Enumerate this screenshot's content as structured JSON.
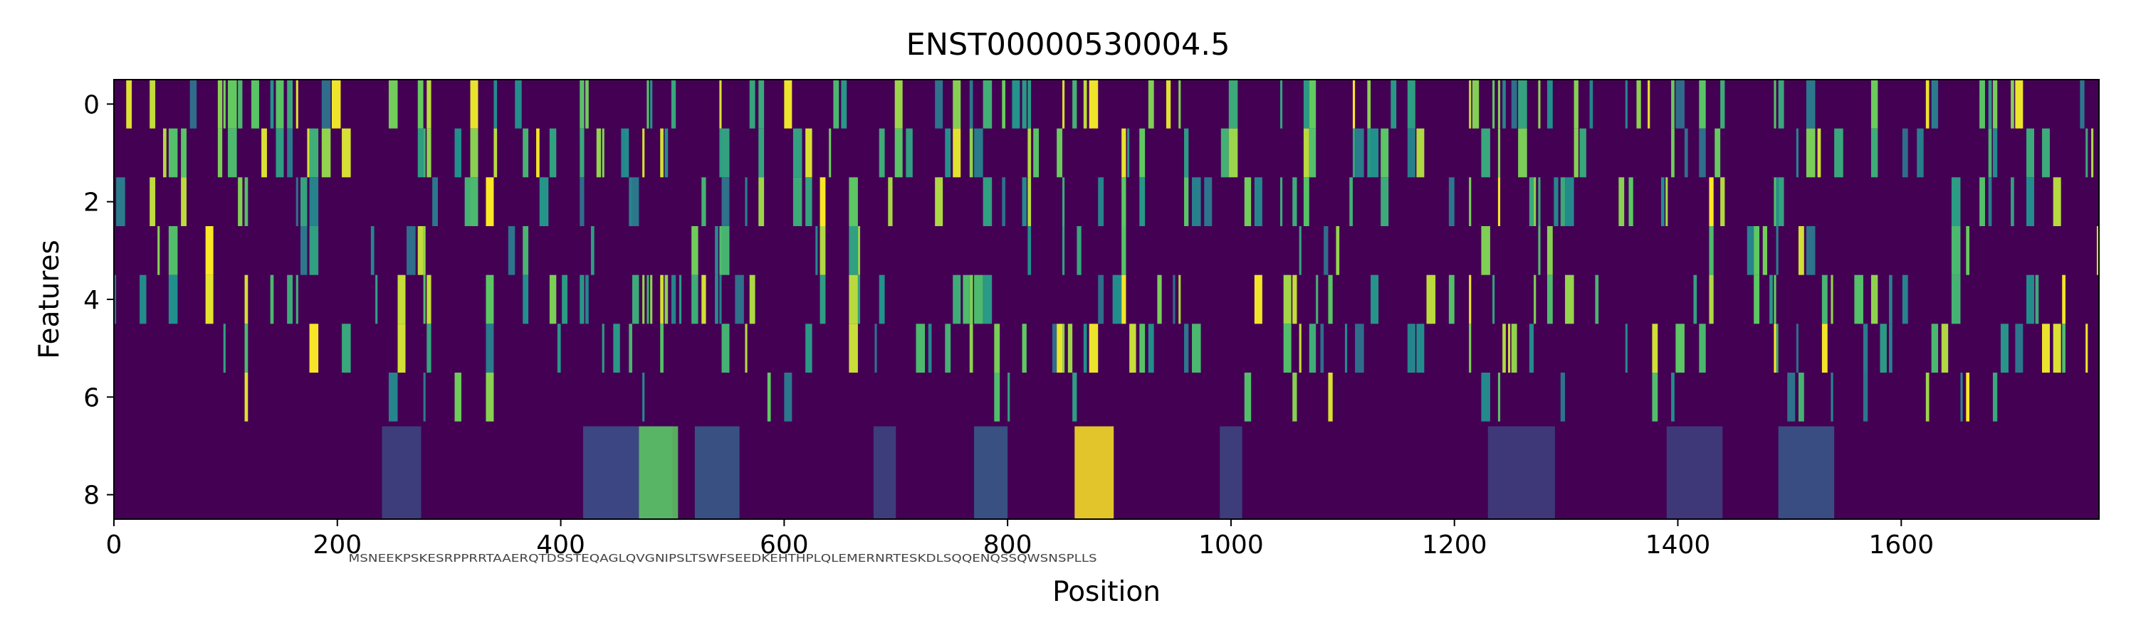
{
  "chart_data": {
    "type": "heatmap",
    "title": "ENST00000530004.5",
    "xlabel": "Position",
    "ylabel": "Features",
    "xlim": [
      0,
      1777
    ],
    "ylim": [
      8.5,
      -0.5
    ],
    "x_ticks": [
      "0",
      "200",
      "400",
      "600",
      "800",
      "1000",
      "1200",
      "1400",
      "1600"
    ],
    "y_ticks": [
      "0",
      "2",
      "4",
      "6",
      "8"
    ],
    "rows": 9,
    "columns": 1777,
    "colormap": "viridis",
    "colors": {
      "low": "#440154",
      "mid_low": "#31688e",
      "mid": "#21918c",
      "mid_high": "#5ec962",
      "high": "#fde725"
    },
    "annotation_text": "MSNEEKPSKESRPPRRTAAERQTDSSTEQAGLQVGNIPSLTSWFSEEDKEHTHPLQLEMERNRTESKDLSQQENQSSQWSNSPLLS",
    "grid": false,
    "legend": "none"
  }
}
